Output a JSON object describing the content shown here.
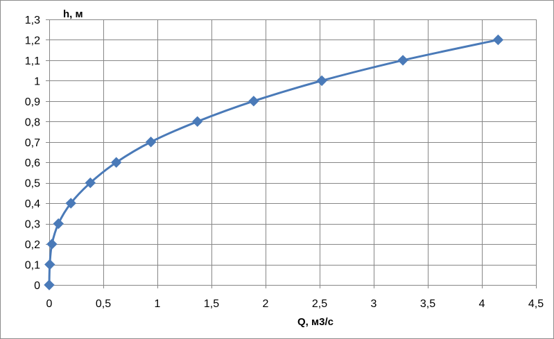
{
  "chart_data": {
    "type": "scatter",
    "subtype": "smooth-line-with-markers",
    "title": "",
    "xlabel": "Q, м3/с",
    "ylabel": "h, м",
    "xlim": [
      0,
      4.5
    ],
    "ylim": [
      0,
      1.3
    ],
    "x_ticks": [
      "0",
      "0,5",
      "1",
      "1,5",
      "2",
      "2,5",
      "3",
      "3,5",
      "4",
      "4,5"
    ],
    "y_ticks": [
      "0",
      "0,1",
      "0,2",
      "0,3",
      "0,4",
      "0,5",
      "0,6",
      "0,7",
      "0,8",
      "0,9",
      "1",
      "1,1",
      "1,2",
      "1,3"
    ],
    "grid": "on",
    "legend": "none",
    "marker": "diamond",
    "series": [
      {
        "color": "#4a7ab8",
        "x": [
          0.0,
          0.005,
          0.025,
          0.085,
          0.2,
          0.38,
          0.62,
          0.94,
          1.37,
          1.89,
          2.52,
          3.27,
          4.15
        ],
        "y": [
          0.0,
          0.1,
          0.2,
          0.3,
          0.4,
          0.5,
          0.6,
          0.7,
          0.8,
          0.9,
          1.0,
          1.1,
          1.2
        ]
      }
    ]
  }
}
